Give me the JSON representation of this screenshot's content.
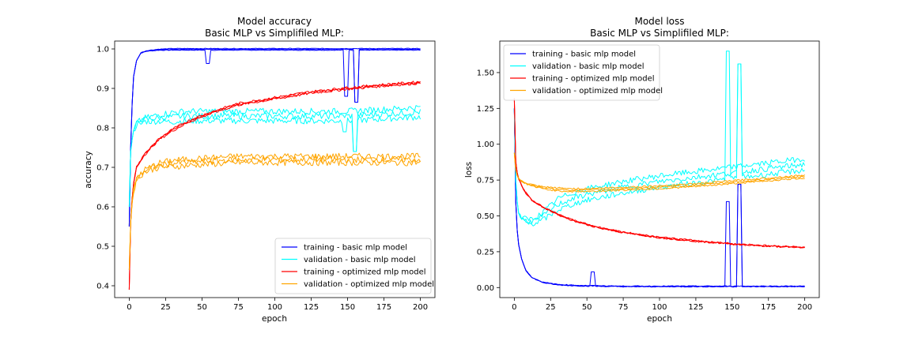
{
  "chart_data": [
    {
      "type": "line",
      "title": "Model accuracy\nBasic MLP vs Simplifiled MLP:",
      "xlabel": "epoch",
      "ylabel": "accuracy",
      "xlim": [
        -10,
        210
      ],
      "ylim": [
        0.37,
        1.02
      ],
      "xticks": [
        0,
        25,
        50,
        75,
        100,
        125,
        150,
        175,
        200
      ],
      "yticks": [
        0.4,
        0.5,
        0.6,
        0.7,
        0.8,
        0.9,
        1.0
      ],
      "ytick_labels": [
        "0.4",
        "0.5",
        "0.6",
        "0.7",
        "0.8",
        "0.9",
        "1.0"
      ],
      "grid": false,
      "legend_position": "lower-right",
      "series": [
        {
          "name": "training - basic mlp model",
          "color": "#0000ff",
          "x": [
            0,
            1,
            2,
            3,
            5,
            8,
            12,
            20,
            30,
            40,
            50,
            60,
            80,
            100,
            125,
            150,
            175,
            200
          ],
          "y": [
            0.55,
            0.75,
            0.86,
            0.93,
            0.97,
            0.99,
            0.995,
            0.998,
            0.999,
            0.999,
            0.999,
            0.999,
            0.999,
            0.999,
            0.999,
            0.999,
            0.999,
            0.999
          ],
          "dips": [
            [
              54,
              0.963
            ],
            [
              149,
              0.88
            ],
            [
              156,
              0.865
            ]
          ]
        },
        {
          "name": "validation - basic mlp model",
          "color": "#00ffff",
          "x": [
            0,
            1,
            2,
            3,
            5,
            10,
            20,
            40,
            60,
            80,
            100,
            125,
            150,
            175,
            200
          ],
          "y": [
            0.6,
            0.74,
            0.77,
            0.79,
            0.81,
            0.82,
            0.825,
            0.83,
            0.83,
            0.83,
            0.83,
            0.83,
            0.83,
            0.835,
            0.84
          ],
          "dips": [
            [
              148,
              0.79
            ],
            [
              155,
              0.74
            ]
          ]
        },
        {
          "name": "training - optimized mlp model",
          "color": "#ff0000",
          "x": [
            0,
            1,
            2,
            3,
            5,
            10,
            15,
            20,
            30,
            40,
            50,
            60,
            75,
            100,
            125,
            150,
            175,
            200
          ],
          "y": [
            0.39,
            0.56,
            0.62,
            0.66,
            0.7,
            0.73,
            0.75,
            0.77,
            0.795,
            0.815,
            0.83,
            0.843,
            0.86,
            0.875,
            0.89,
            0.9,
            0.908,
            0.915
          ],
          "dips": []
        },
        {
          "name": "validation - optimized mlp model",
          "color": "#ffa500",
          "x": [
            0,
            1,
            2,
            3,
            5,
            10,
            20,
            30,
            50,
            75,
            100,
            125,
            150,
            175,
            200
          ],
          "y": [
            0.44,
            0.56,
            0.61,
            0.64,
            0.67,
            0.69,
            0.705,
            0.71,
            0.715,
            0.72,
            0.72,
            0.72,
            0.72,
            0.72,
            0.72
          ],
          "dips": []
        }
      ]
    },
    {
      "type": "line",
      "title": "Model loss\nBasic MLP vs Simplifiled MLP:",
      "xlabel": "epoch",
      "ylabel": "loss",
      "xlim": [
        -10,
        210
      ],
      "ylim": [
        -0.07,
        1.72
      ],
      "xticks": [
        0,
        25,
        50,
        75,
        100,
        125,
        150,
        175,
        200
      ],
      "yticks": [
        0.0,
        0.25,
        0.5,
        0.75,
        1.0,
        1.25,
        1.5
      ],
      "ytick_labels": [
        "0.00",
        "0.25",
        "0.50",
        "0.75",
        "1.00",
        "1.25",
        "1.50"
      ],
      "grid": false,
      "legend_position": "upper-left",
      "series": [
        {
          "name": "training - basic mlp model",
          "color": "#0000ff",
          "x": [
            0,
            1,
            2,
            3,
            5,
            8,
            12,
            20,
            30,
            40,
            50,
            60,
            75,
            100,
            125,
            150,
            175,
            200
          ],
          "y": [
            1.25,
            0.6,
            0.4,
            0.3,
            0.2,
            0.12,
            0.07,
            0.035,
            0.02,
            0.015,
            0.012,
            0.01,
            0.008,
            0.008,
            0.008,
            0.008,
            0.008,
            0.008
          ],
          "dips": [
            [
              54,
              0.11
            ],
            [
              147,
              0.6
            ],
            [
              155,
              0.72
            ]
          ]
        },
        {
          "name": "validation - basic mlp model",
          "color": "#00ffff",
          "x": [
            0,
            1,
            2,
            3,
            5,
            10,
            15,
            20,
            25,
            30,
            40,
            50,
            75,
            100,
            125,
            150,
            175,
            200
          ],
          "y": [
            1.25,
            0.75,
            0.6,
            0.52,
            0.48,
            0.46,
            0.47,
            0.5,
            0.54,
            0.58,
            0.62,
            0.65,
            0.7,
            0.74,
            0.77,
            0.8,
            0.83,
            0.86
          ],
          "dips": [
            [
              147,
              1.65
            ],
            [
              155,
              1.56
            ]
          ]
        },
        {
          "name": "training - optimized mlp model",
          "color": "#ff0000",
          "x": [
            0,
            1,
            2,
            3,
            5,
            8,
            12,
            20,
            30,
            40,
            50,
            60,
            75,
            100,
            125,
            150,
            175,
            200
          ],
          "y": [
            1.32,
            0.88,
            0.8,
            0.76,
            0.71,
            0.66,
            0.61,
            0.56,
            0.51,
            0.47,
            0.44,
            0.415,
            0.385,
            0.35,
            0.325,
            0.305,
            0.29,
            0.28
          ],
          "dips": []
        },
        {
          "name": "validation - optimized mlp model",
          "color": "#ffa500",
          "x": [
            0,
            1,
            2,
            3,
            5,
            10,
            15,
            20,
            30,
            40,
            50,
            75,
            100,
            125,
            150,
            175,
            200
          ],
          "y": [
            0.94,
            0.82,
            0.78,
            0.76,
            0.74,
            0.72,
            0.705,
            0.695,
            0.685,
            0.68,
            0.68,
            0.69,
            0.7,
            0.715,
            0.735,
            0.755,
            0.775
          ],
          "dips": []
        }
      ]
    }
  ]
}
